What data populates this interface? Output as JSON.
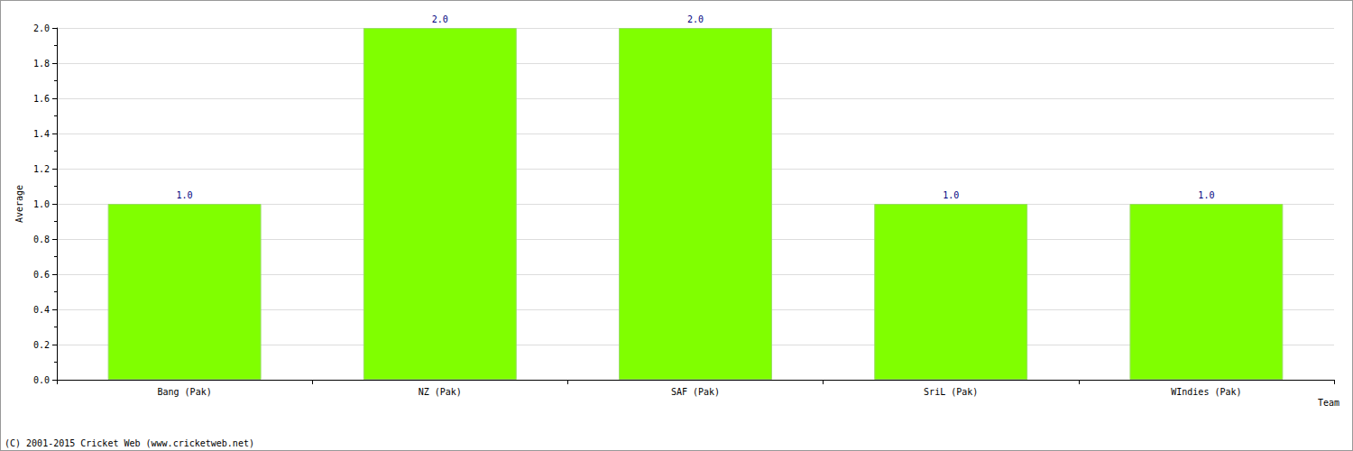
{
  "chart_data": {
    "type": "bar",
    "x_label": "Team",
    "y_label": "Average",
    "annotations": [
      "(C) 2001-2015 Cricket Web (www.cricketweb.net)"
    ],
    "categories": [
      "Bang (Pak)",
      "NZ (Pak)",
      "SAF (Pak)",
      "SriL (Pak)",
      "WIndies (Pak)"
    ],
    "values": [
      1,
      2,
      2,
      1,
      1
    ],
    "value_labels": [
      "1.0",
      "2.0",
      "2.0",
      "1.0",
      "1.0"
    ],
    "color": "#80ff00",
    "ylim": [
      0,
      2
    ],
    "yticks": [
      {
        "value": 0,
        "label": "0.0"
      },
      {
        "value": 0.2,
        "label": "0.2"
      },
      {
        "value": 0.4,
        "label": "0.4"
      },
      {
        "value": 0.6,
        "label": "0.6"
      },
      {
        "value": 0.8,
        "label": "0.8"
      },
      {
        "value": 1,
        "label": "1.0"
      },
      {
        "value": 1.2,
        "label": "1.2"
      },
      {
        "value": 1.4,
        "label": "1.4"
      },
      {
        "value": 1.6,
        "label": "1.6"
      },
      {
        "value": 1.8,
        "label": "1.8"
      },
      {
        "value": 2,
        "label": "2.0"
      }
    ],
    "grid": true,
    "data_labels": true
  }
}
